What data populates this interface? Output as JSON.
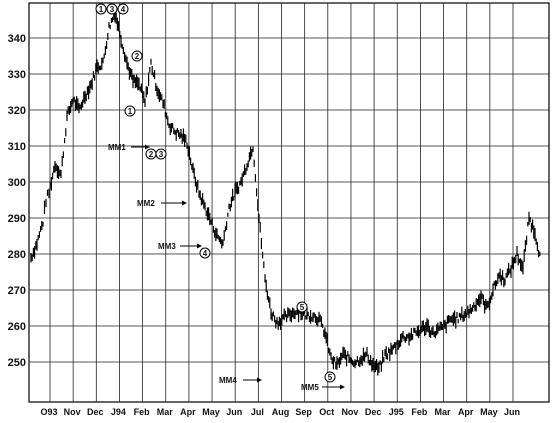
{
  "chart_data": {
    "type": "line",
    "grid": true,
    "ylim": [
      242,
      351
    ],
    "y_ticks": [
      "250",
      "260",
      "270",
      "280",
      "290",
      "300",
      "310",
      "320",
      "330",
      "340"
    ],
    "x_ticks": [
      "O93",
      "Nov",
      "Dec",
      "J94",
      "Feb",
      "Mar",
      "Apr",
      "May",
      "Jun",
      "Jul",
      "Aug",
      "Sep",
      "Oct",
      "Nov",
      "Dec",
      "J95",
      "Feb",
      "Mar",
      "Apr",
      "May",
      "Jun"
    ],
    "series": [
      {
        "x": [
          0,
          1,
          2,
          2.5,
          3,
          4,
          5,
          6,
          7,
          8,
          9,
          10,
          11,
          12,
          13,
          14,
          15,
          16,
          17,
          18,
          19,
          20,
          21,
          22,
          23,
          24,
          25,
          26,
          27,
          28,
          29,
          30,
          31,
          32,
          33,
          34,
          35,
          36,
          37,
          38,
          39,
          40,
          41,
          42,
          43,
          44,
          45,
          46,
          47,
          48,
          49,
          50,
          51,
          52,
          53,
          54,
          55,
          56,
          57,
          58,
          59,
          60,
          61,
          62,
          63,
          64,
          65,
          66,
          67,
          68,
          69,
          70,
          71,
          72,
          73,
          74,
          75,
          76,
          77,
          78,
          79,
          80,
          81,
          82,
          83,
          84,
          85
        ],
        "values": [
          279,
          283,
          289,
          295,
          297,
          305,
          302,
          318,
          323,
          320,
          324,
          327,
          332,
          333,
          343,
          347,
          340,
          333,
          328,
          327,
          322,
          333,
          326,
          322,
          316,
          314,
          313,
          311,
          303,
          297,
          293,
          289,
          285,
          283,
          293,
          297,
          300,
          305,
          310,
          290,
          273,
          264,
          261,
          262,
          263,
          264,
          264,
          263,
          263,
          262,
          258,
          251,
          249,
          252,
          251,
          250,
          251,
          252,
          249,
          248,
          252,
          253,
          255,
          257,
          257,
          258,
          259,
          260,
          258,
          259,
          260,
          262,
          262,
          263,
          264,
          266,
          268,
          265,
          270,
          274,
          273,
          276,
          280,
          276,
          290,
          286,
          278
        ]
      }
    ],
    "annotations": [
      {
        "text": "MM1"
      },
      {
        "text": "MM2"
      },
      {
        "text": "MM3"
      },
      {
        "text": "MM4"
      },
      {
        "text": "MM5"
      }
    ],
    "wave_labels": [
      "1",
      "3",
      "4",
      "2",
      "1",
      "2",
      "3",
      "4",
      "5",
      "5"
    ]
  }
}
